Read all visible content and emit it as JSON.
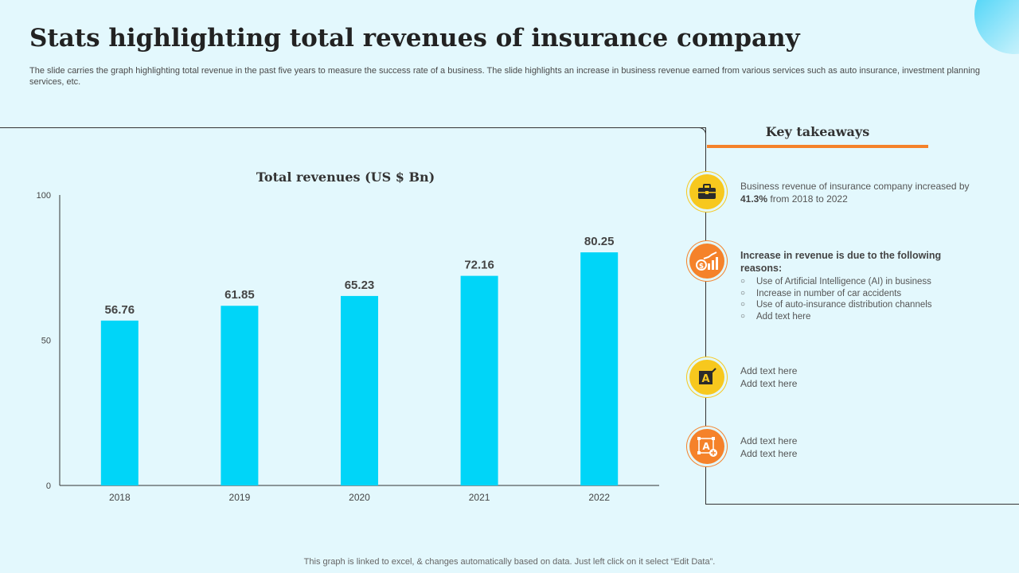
{
  "title": "Stats highlighting total revenues of insurance company",
  "subtitle": "The slide carries the graph highlighting total revenue in the past five years to measure the success rate of a business. The slide highlights an increase in business revenue earned from various services such as auto insurance, investment planning services, etc.",
  "colors": {
    "bar": "#00d5f8",
    "accent_orange": "#f5822a",
    "accent_yellow": "#f7c81e",
    "background": "#e3f8fd"
  },
  "chart_data": {
    "type": "bar",
    "title": "Total revenues (US $ Bn)",
    "categories": [
      "2018",
      "2019",
      "2020",
      "2021",
      "2022"
    ],
    "values": [
      56.76,
      61.85,
      65.23,
      72.16,
      80.25
    ],
    "value_labels": [
      "56.76",
      "61.85",
      "65.23",
      "72.16",
      "80.25"
    ],
    "yticks": [
      "0",
      "50",
      "100"
    ],
    "ylim": [
      0,
      100
    ],
    "xlabel": "",
    "ylabel": "",
    "grid": false
  },
  "key_takeaways": {
    "heading": "Key takeaways",
    "item1": {
      "icon": "briefcase-icon",
      "text_before": "Business revenue of insurance company increased by ",
      "highlight": "41.3%",
      "text_after": " from 2018 to 2022"
    },
    "item2": {
      "icon": "revenue-growth-icon",
      "heading": "Increase in revenue is due to the following reasons:",
      "reasons": [
        "Use of Artificial Intelligence (AI) in business",
        "Increase in number of car accidents",
        "Use of auto-insurance distribution channels",
        "Add text here"
      ]
    },
    "item3": {
      "icon": "text-edit-icon",
      "line1": "Add text here",
      "line2": "Add text here"
    },
    "item4": {
      "icon": "text-add-icon",
      "line1": "Add text here",
      "line2": "Add text here"
    }
  },
  "footer": "This graph is linked to excel, & changes automatically based on data. Just left click on it select “Edit Data”."
}
